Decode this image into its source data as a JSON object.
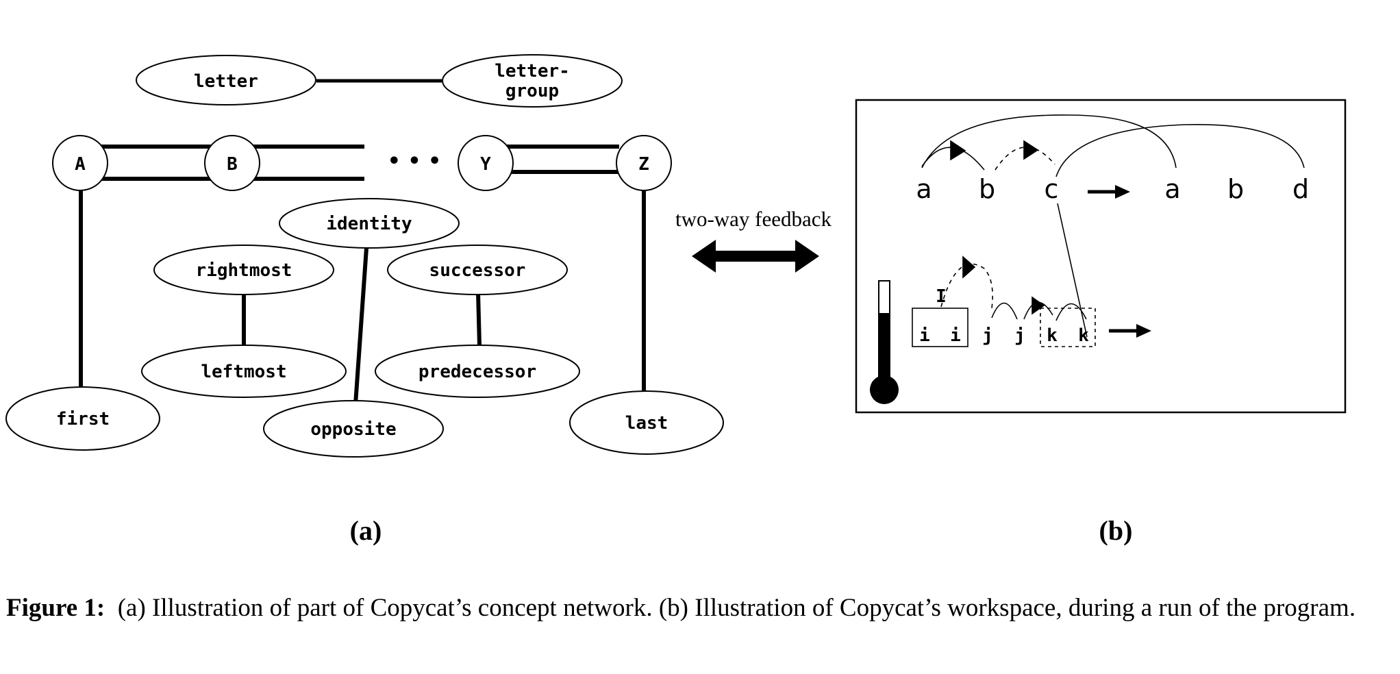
{
  "concept_network": {
    "top_nodes": [
      "letter",
      "letter-group"
    ],
    "letters": [
      "A",
      "B",
      "Y",
      "Z"
    ],
    "ellipsis": "• • •",
    "concepts": {
      "identity": "identity",
      "rightmost": "rightmost",
      "leftmost": "leftmost",
      "successor": "successor",
      "predecessor": "predecessor",
      "first": "first",
      "opposite": "opposite",
      "last": "last"
    },
    "panel_label": "(a)"
  },
  "feedback": {
    "label": "two-way feedback"
  },
  "workspace": {
    "initial_string": [
      "a",
      "b",
      "c"
    ],
    "modified_string": [
      "a",
      "b",
      "d"
    ],
    "target_string": [
      "i",
      "i",
      "j",
      "j",
      "k",
      "k"
    ],
    "group_label": "I",
    "panel_label": "(b)"
  },
  "caption": {
    "label": "Figure 1:",
    "text": "(a) Illustration of part of Copycat’s concept network. (b) Illustration of Copycat’s workspace, during a run of the program."
  }
}
